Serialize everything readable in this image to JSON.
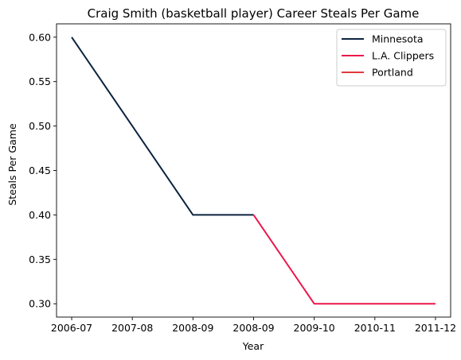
{
  "chart_data": {
    "type": "line",
    "title": "Craig Smith (basketball player) Career Steals Per Game",
    "xlabel": "Year",
    "ylabel": "Steals Per Game",
    "categories": [
      "2006-07",
      "2007-08",
      "2008-09",
      "2008-09",
      "2009-10",
      "2010-11",
      "2011-12"
    ],
    "xlim": [
      -0.25,
      6.25
    ],
    "ylim": [
      0.285,
      0.615
    ],
    "yticks": [
      0.3,
      0.35,
      0.4,
      0.45,
      0.5,
      0.55,
      0.6
    ],
    "ytick_labels": [
      "0.30",
      "0.35",
      "0.40",
      "0.45",
      "0.50",
      "0.55",
      "0.60"
    ],
    "legend_position": "top-right",
    "series": [
      {
        "name": "Minnesota",
        "color": "#0c2340",
        "x": [
          "2006-07",
          "2008-09",
          "2008-09"
        ],
        "xi": [
          0,
          2,
          3
        ],
        "values": [
          0.6,
          0.4,
          0.4
        ]
      },
      {
        "name": "L.A. Clippers",
        "color": "#ec174c",
        "x": [
          "2008-09",
          "2009-10",
          "2010-11",
          "2011-12"
        ],
        "xi": [
          3,
          4,
          5,
          6
        ],
        "values": [
          0.4,
          0.3,
          0.3,
          0.3
        ]
      },
      {
        "name": "Portland",
        "color": "#e03a3e",
        "x": [],
        "xi": [],
        "values": []
      }
    ]
  }
}
